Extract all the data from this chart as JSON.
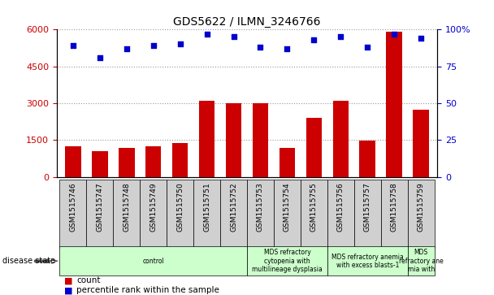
{
  "title": "GDS5622 / ILMN_3246766",
  "samples": [
    "GSM1515746",
    "GSM1515747",
    "GSM1515748",
    "GSM1515749",
    "GSM1515750",
    "GSM1515751",
    "GSM1515752",
    "GSM1515753",
    "GSM1515754",
    "GSM1515755",
    "GSM1515756",
    "GSM1515757",
    "GSM1515758",
    "GSM1515759"
  ],
  "counts": [
    1250,
    1050,
    1200,
    1250,
    1380,
    3100,
    3000,
    3000,
    1180,
    2400,
    3100,
    1480,
    5900,
    2750
  ],
  "percentiles": [
    89,
    81,
    87,
    89,
    90,
    97,
    95,
    88,
    87,
    93,
    95,
    88,
    97,
    94
  ],
  "bar_color": "#cc0000",
  "dot_color": "#0000cc",
  "ylim_left": [
    0,
    6000
  ],
  "ylim_right": [
    0,
    100
  ],
  "yticks_left": [
    0,
    1500,
    3000,
    4500,
    6000
  ],
  "yticks_right": [
    0,
    25,
    50,
    75,
    100
  ],
  "ytick_labels_left": [
    "0",
    "1500",
    "3000",
    "4500",
    "6000"
  ],
  "ytick_labels_right": [
    "0",
    "25",
    "50",
    "75",
    "100%"
  ],
  "disease_groups": [
    {
      "label": "control",
      "start": 0,
      "end": 7
    },
    {
      "label": "MDS refractory\ncytopenia with\nmultilineage dysplasia",
      "start": 7,
      "end": 10
    },
    {
      "label": "MDS refractory anemia\nwith excess blasts-1",
      "start": 10,
      "end": 13
    },
    {
      "label": "MDS\nrefractory ane\nmia with",
      "start": 13,
      "end": 14
    }
  ],
  "disease_state_label": "disease state",
  "legend_count_label": "count",
  "legend_percentile_label": "percentile rank within the sample",
  "background_color": "#ffffff",
  "grid_color": "#999999",
  "sample_box_color": "#d0d0d0",
  "disease_box_color": "#ccffcc",
  "tick_label_color_left": "#cc0000",
  "tick_label_color_right": "#0000cc"
}
